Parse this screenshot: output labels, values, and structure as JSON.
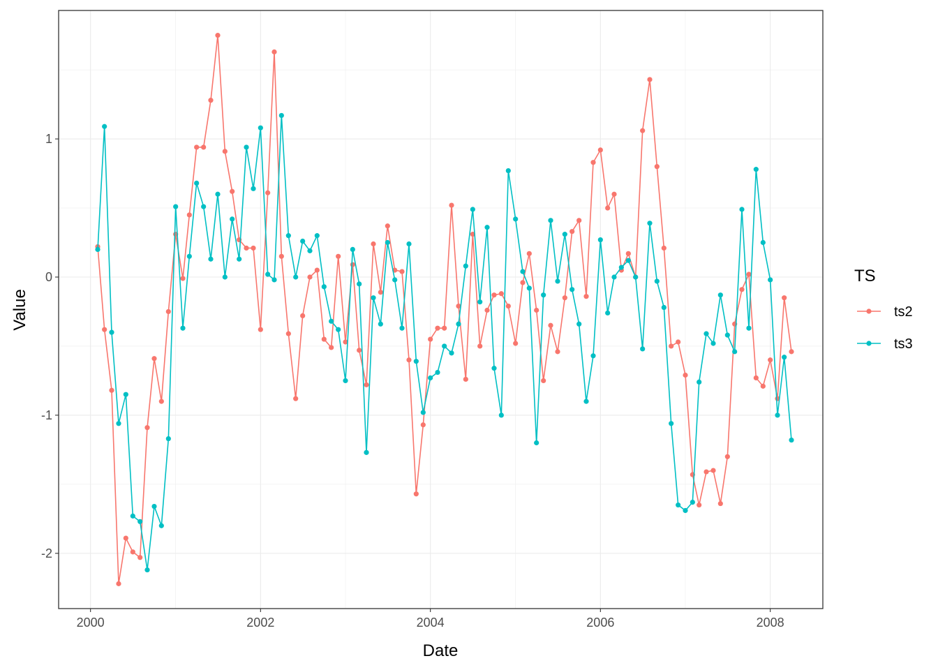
{
  "chart_data": {
    "type": "line",
    "title": "",
    "xlabel": "Date",
    "ylabel": "Value",
    "x_start": "2000-02",
    "x_step": "month",
    "xlim": [
      "1999-08-17",
      "2008-08-14"
    ],
    "ylim": [
      -2.4,
      1.93
    ],
    "x_ticks": [
      "2000",
      "2002",
      "2004",
      "2006",
      "2008"
    ],
    "y_ticks": [
      -2,
      -1,
      0,
      1
    ],
    "grid": true,
    "legend_title": "TS",
    "legend_position": "right",
    "series": [
      {
        "name": "ts2",
        "color": "#F8766D",
        "values": [
          0.22,
          -0.38,
          -0.82,
          -2.22,
          -1.89,
          -1.99,
          -2.03,
          -1.09,
          -0.59,
          -0.9,
          -0.25,
          0.31,
          -0.01,
          0.45,
          0.94,
          0.94,
          1.28,
          1.75,
          0.91,
          0.62,
          0.27,
          0.21,
          0.21,
          -0.38,
          0.61,
          1.63,
          0.15,
          -0.41,
          -0.88,
          -0.28,
          0.0,
          0.05,
          -0.45,
          -0.51,
          0.15,
          -0.47,
          0.09,
          -0.53,
          -0.78,
          0.24,
          -0.11,
          0.37,
          0.05,
          0.04,
          -0.6,
          -1.57,
          -1.07,
          -0.45,
          -0.37,
          -0.37,
          0.52,
          -0.21,
          -0.74,
          0.31,
          -0.5,
          -0.24,
          -0.13,
          -0.12,
          -0.21,
          -0.48,
          -0.04,
          0.17,
          -0.24,
          -0.75,
          -0.35,
          -0.54,
          -0.15,
          0.33,
          0.41,
          -0.14,
          0.83,
          0.92,
          0.5,
          0.6,
          0.05,
          0.17,
          0.0,
          1.06,
          1.43,
          0.8,
          0.21,
          -0.5,
          -0.47,
          -0.71,
          -1.43,
          -1.65,
          -1.41,
          -1.4,
          -1.64,
          -1.3,
          -0.34,
          -0.09,
          0.02,
          -0.73,
          -0.79,
          -0.6,
          -0.88,
          -0.15,
          -0.54
        ]
      },
      {
        "name": "ts3",
        "color": "#00BFC4",
        "values": [
          0.2,
          1.09,
          -0.4,
          -1.06,
          -0.85,
          -1.73,
          -1.77,
          -2.12,
          -1.66,
          -1.8,
          -1.17,
          0.51,
          -0.37,
          0.15,
          0.68,
          0.51,
          0.13,
          0.6,
          0.0,
          0.42,
          0.13,
          0.94,
          0.64,
          1.08,
          0.02,
          -0.02,
          1.17,
          0.3,
          0.0,
          0.26,
          0.19,
          0.3,
          -0.07,
          -0.32,
          -0.38,
          -0.75,
          0.2,
          -0.05,
          -1.27,
          -0.15,
          -0.34,
          0.25,
          -0.02,
          -0.37,
          0.24,
          -0.61,
          -0.98,
          -0.73,
          -0.69,
          -0.5,
          -0.55,
          -0.34,
          0.08,
          0.49,
          -0.18,
          0.36,
          -0.66,
          -1.0,
          0.77,
          0.42,
          0.04,
          -0.08,
          -1.2,
          -0.13,
          0.41,
          -0.03,
          0.31,
          -0.09,
          -0.34,
          -0.9,
          -0.57,
          0.27,
          -0.26,
          0.0,
          0.07,
          0.12,
          0.0,
          -0.52,
          0.39,
          -0.03,
          -0.22,
          -1.06,
          -1.65,
          -1.69,
          -1.63,
          -0.76,
          -0.41,
          -0.48,
          -0.13,
          -0.42,
          -0.54,
          0.49,
          -0.37,
          0.78,
          0.25,
          -0.02,
          -1.0,
          -0.58,
          -1.18
        ]
      }
    ]
  }
}
